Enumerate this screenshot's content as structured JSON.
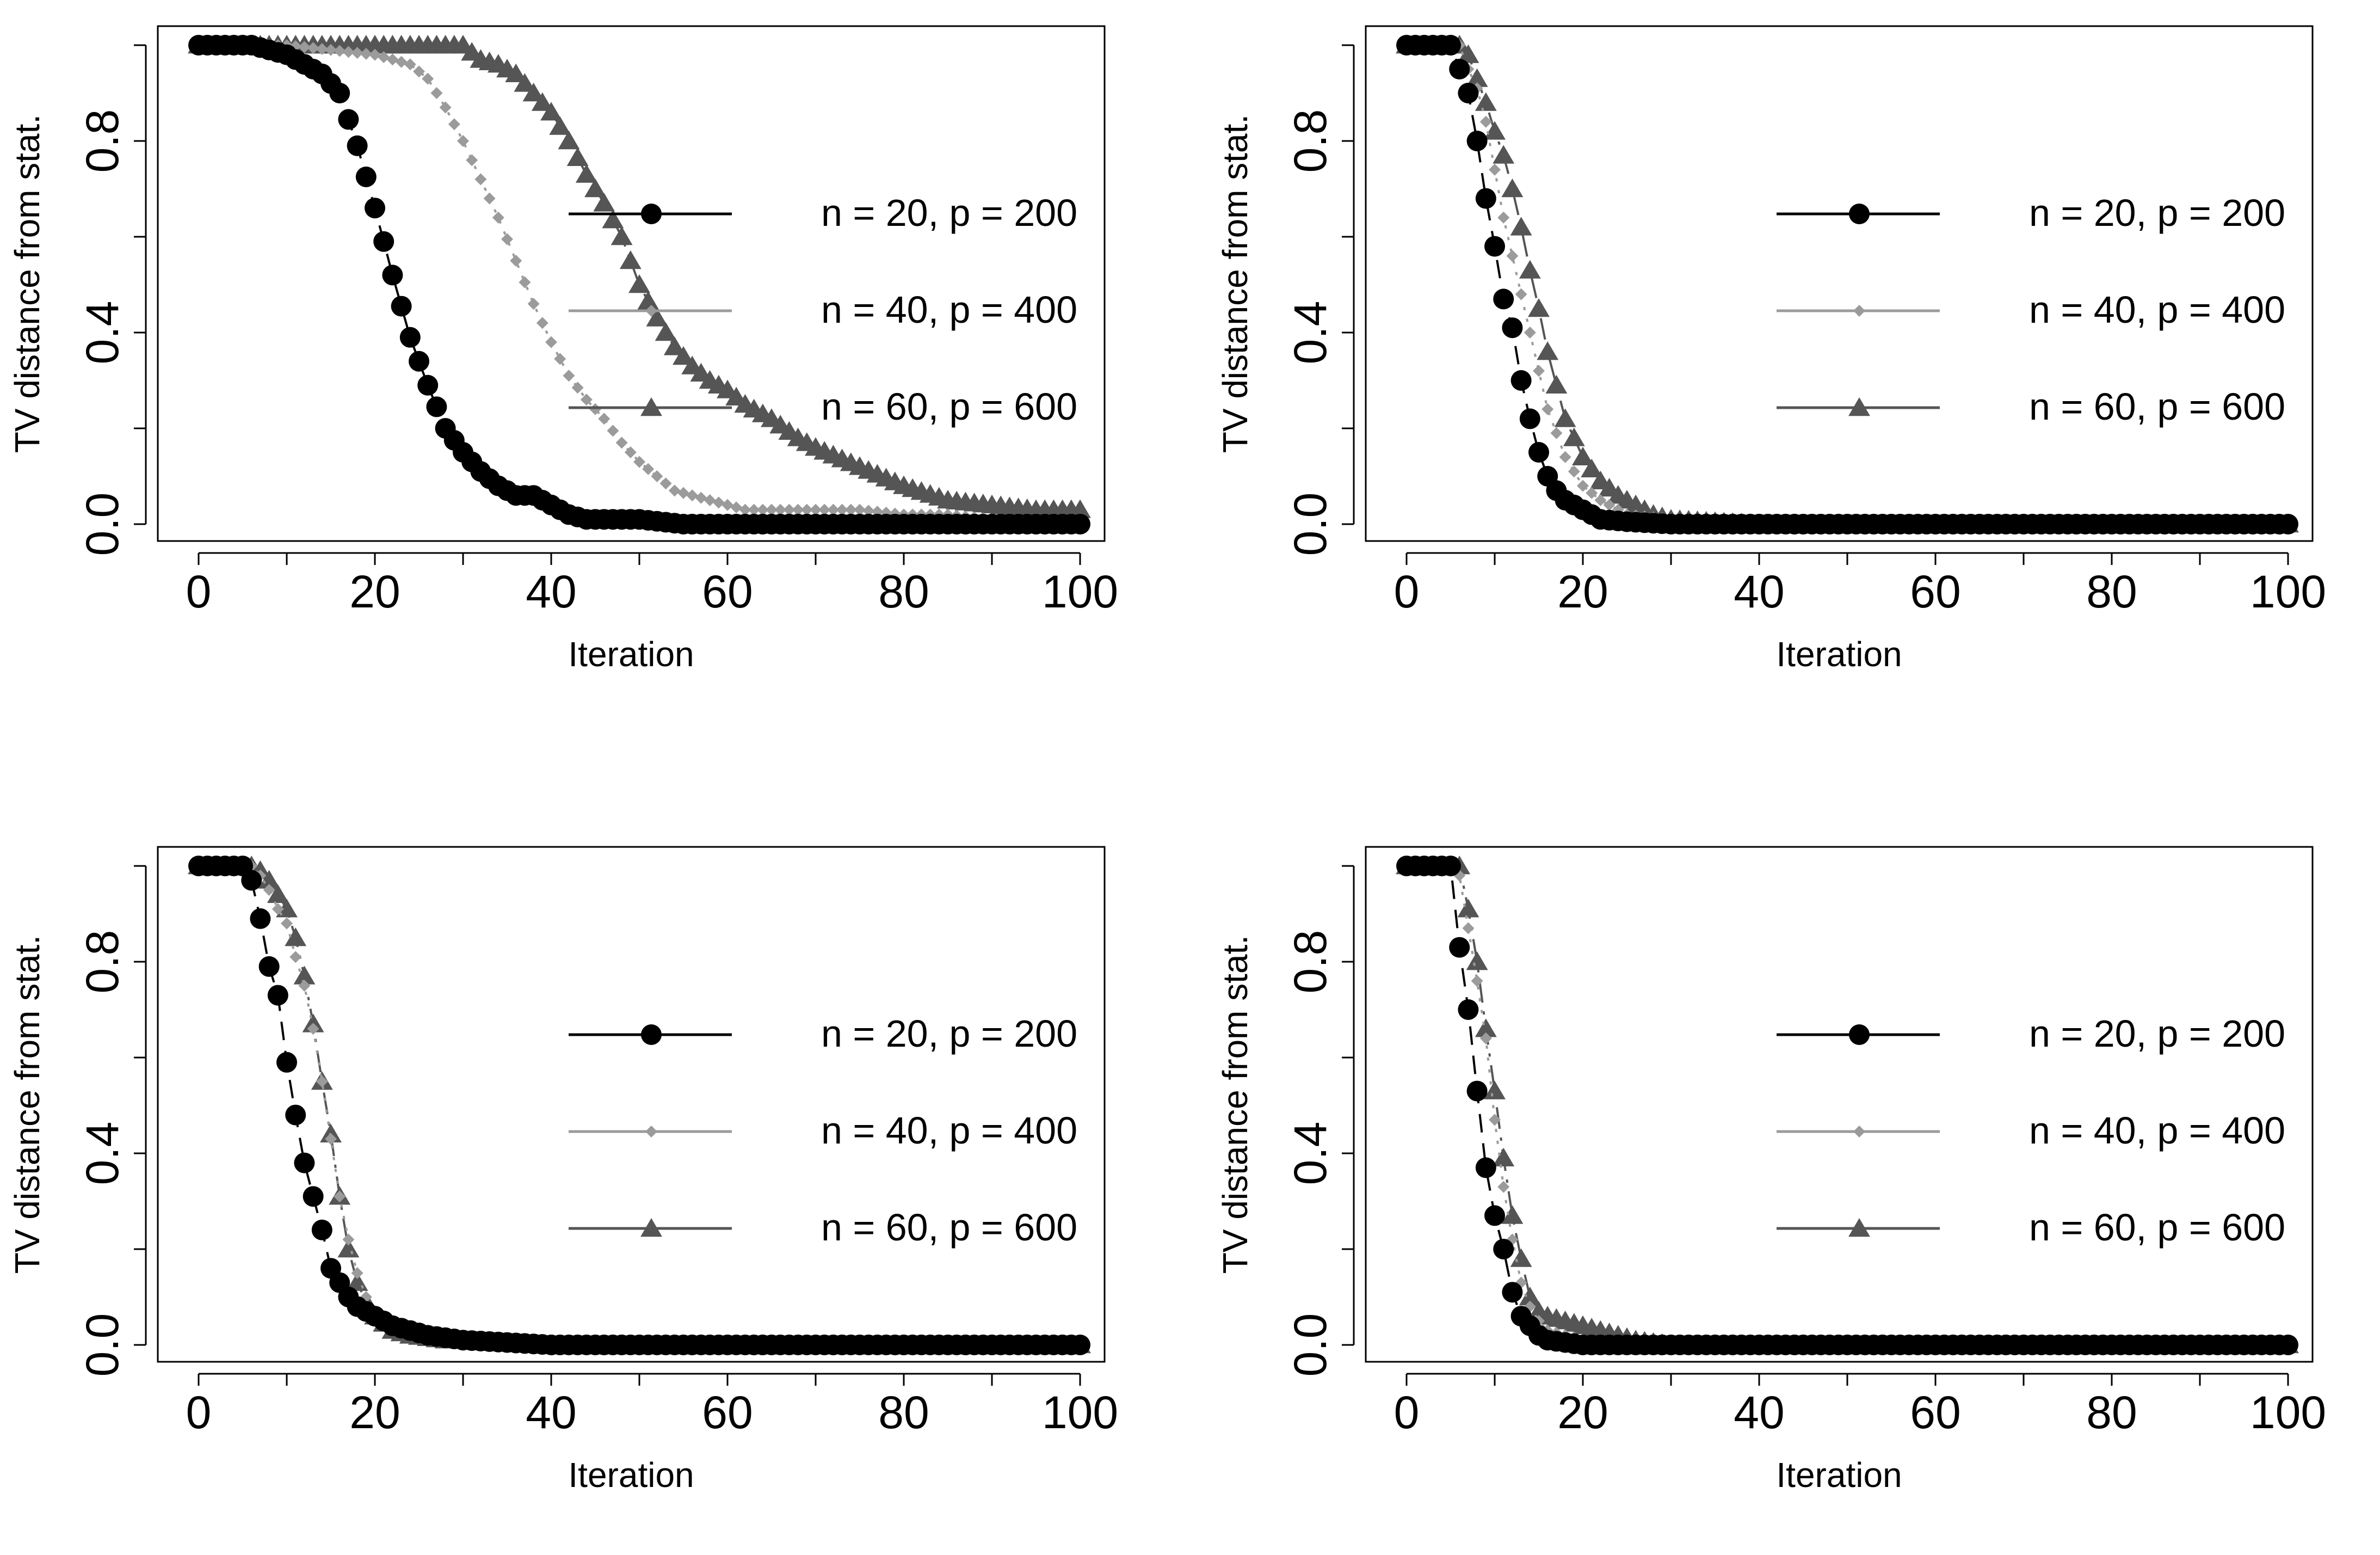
{
  "colors": {
    "n20": "#000000",
    "n40": "#9b9b9b",
    "n60": "#555555"
  },
  "chart_data": [
    {
      "type": "line",
      "xlabel": "Iteration",
      "ylabel": "TV distance from stat.",
      "xlim": [
        0,
        100
      ],
      "ylim": [
        0,
        1
      ],
      "xticks": [
        "0",
        "20",
        "40",
        "60",
        "80",
        "100"
      ],
      "yticks": [
        "0.0",
        "0.4",
        "0.8"
      ],
      "legend_position": "right",
      "series": [
        {
          "name": "n = 20, p = 200",
          "marker": "circle",
          "linestyle": "dashed",
          "x": [
            0,
            2,
            4,
            6,
            8,
            10,
            12,
            14,
            16,
            18,
            20,
            22,
            24,
            26,
            28,
            30,
            32,
            34,
            36,
            38,
            40,
            42,
            44,
            46,
            48,
            50,
            55,
            60,
            70,
            80,
            90,
            100
          ],
          "y": [
            1.0,
            1.0,
            1.0,
            1.0,
            0.99,
            0.98,
            0.96,
            0.94,
            0.9,
            0.79,
            0.66,
            0.52,
            0.39,
            0.29,
            0.2,
            0.15,
            0.11,
            0.08,
            0.06,
            0.06,
            0.04,
            0.02,
            0.01,
            0.01,
            0.01,
            0.01,
            0.0,
            0.0,
            0.0,
            0.0,
            0.0,
            0.0
          ]
        },
        {
          "name": "n = 40, p = 400",
          "marker": "diamond",
          "linestyle": "dotted",
          "x": [
            0,
            5,
            10,
            15,
            20,
            24,
            26,
            28,
            30,
            32,
            34,
            36,
            38,
            40,
            42,
            44,
            46,
            48,
            50,
            52,
            54,
            56,
            58,
            60,
            62,
            65,
            70,
            75,
            80,
            85,
            90,
            95,
            100
          ],
          "y": [
            1.0,
            1.0,
            1.0,
            0.99,
            0.98,
            0.96,
            0.93,
            0.87,
            0.8,
            0.72,
            0.64,
            0.55,
            0.46,
            0.38,
            0.31,
            0.26,
            0.22,
            0.17,
            0.13,
            0.1,
            0.07,
            0.06,
            0.05,
            0.04,
            0.03,
            0.03,
            0.03,
            0.03,
            0.02,
            0.02,
            0.01,
            0.01,
            0.01
          ]
        },
        {
          "name": "n = 60, p = 600",
          "marker": "triangle",
          "linestyle": "dotdash",
          "x": [
            0,
            5,
            10,
            15,
            20,
            25,
            30,
            32,
            34,
            36,
            38,
            40,
            42,
            44,
            46,
            48,
            50,
            52,
            54,
            56,
            58,
            60,
            62,
            65,
            68,
            70,
            75,
            80,
            85,
            90,
            95,
            100
          ],
          "y": [
            1.0,
            1.0,
            1.0,
            1.0,
            1.0,
            1.0,
            1.0,
            0.97,
            0.96,
            0.94,
            0.9,
            0.86,
            0.8,
            0.73,
            0.67,
            0.6,
            0.5,
            0.43,
            0.37,
            0.33,
            0.3,
            0.28,
            0.25,
            0.22,
            0.18,
            0.16,
            0.12,
            0.08,
            0.05,
            0.04,
            0.03,
            0.03
          ]
        }
      ]
    },
    {
      "type": "line",
      "xlabel": "Iteration",
      "ylabel": "TV distance from stat.",
      "xlim": [
        0,
        100
      ],
      "ylim": [
        0,
        1
      ],
      "xticks": [
        "0",
        "20",
        "40",
        "60",
        "80",
        "100"
      ],
      "yticks": [
        "0.0",
        "0.4",
        "0.8"
      ],
      "legend_position": "right",
      "series": [
        {
          "name": "n = 20, p = 200",
          "marker": "circle",
          "linestyle": "dashed",
          "x": [
            0,
            2,
            4,
            5,
            6,
            7,
            8,
            9,
            10,
            11,
            12,
            13,
            14,
            15,
            16,
            17,
            18,
            20,
            22,
            25,
            30,
            40,
            60,
            80,
            100
          ],
          "y": [
            1.0,
            1.0,
            1.0,
            1.0,
            0.95,
            0.9,
            0.8,
            0.68,
            0.58,
            0.47,
            0.41,
            0.3,
            0.22,
            0.15,
            0.1,
            0.07,
            0.05,
            0.03,
            0.01,
            0.005,
            0.0,
            0.0,
            0.0,
            0.0,
            0.0
          ]
        },
        {
          "name": "n = 40, p = 400",
          "marker": "diamond",
          "linestyle": "dotted",
          "x": [
            0,
            2,
            4,
            6,
            7,
            8,
            9,
            10,
            11,
            12,
            13,
            14,
            15,
            16,
            17,
            18,
            20,
            22,
            25,
            30,
            40,
            60,
            80,
            100
          ],
          "y": [
            1.0,
            1.0,
            1.0,
            1.0,
            0.95,
            0.91,
            0.84,
            0.74,
            0.64,
            0.56,
            0.48,
            0.4,
            0.32,
            0.24,
            0.19,
            0.14,
            0.08,
            0.05,
            0.02,
            0.01,
            0.0,
            0.0,
            0.0,
            0.0
          ]
        },
        {
          "name": "n = 60, p = 600",
          "marker": "triangle",
          "linestyle": "dotdash",
          "x": [
            0,
            2,
            4,
            6,
            7,
            8,
            9,
            10,
            11,
            12,
            13,
            14,
            15,
            16,
            17,
            18,
            19,
            20,
            22,
            24,
            26,
            28,
            30,
            40,
            60,
            80,
            100
          ],
          "y": [
            1.0,
            1.0,
            1.0,
            1.0,
            0.98,
            0.93,
            0.88,
            0.82,
            0.77,
            0.7,
            0.62,
            0.53,
            0.45,
            0.36,
            0.29,
            0.22,
            0.18,
            0.14,
            0.09,
            0.06,
            0.04,
            0.02,
            0.01,
            0.0,
            0.0,
            0.0,
            0.0
          ]
        }
      ]
    },
    {
      "type": "line",
      "xlabel": "Iteration",
      "ylabel": "TV distance from stat.",
      "xlim": [
        0,
        100
      ],
      "ylim": [
        0,
        1
      ],
      "xticks": [
        "0",
        "20",
        "40",
        "60",
        "80",
        "100"
      ],
      "yticks": [
        "0.0",
        "0.4",
        "0.8"
      ],
      "legend_position": "right",
      "series": [
        {
          "name": "n = 20, p = 200",
          "marker": "circle",
          "linestyle": "dashed",
          "x": [
            0,
            2,
            4,
            5,
            6,
            7,
            8,
            9,
            10,
            11,
            12,
            13,
            14,
            15,
            16,
            17,
            18,
            19,
            20,
            22,
            24,
            26,
            28,
            30,
            35,
            40,
            60,
            80,
            100
          ],
          "y": [
            1.0,
            1.0,
            1.0,
            1.0,
            0.97,
            0.89,
            0.79,
            0.73,
            0.59,
            0.48,
            0.38,
            0.31,
            0.24,
            0.16,
            0.13,
            0.1,
            0.08,
            0.07,
            0.06,
            0.04,
            0.03,
            0.02,
            0.015,
            0.01,
            0.005,
            0.0,
            0.0,
            0.0,
            0.0
          ]
        },
        {
          "name": "n = 40, p = 400",
          "marker": "diamond",
          "linestyle": "dotted",
          "x": [
            0,
            2,
            4,
            6,
            7,
            8,
            9,
            10,
            11,
            12,
            13,
            14,
            15,
            16,
            17,
            18,
            19,
            20,
            22,
            24,
            26,
            28,
            30,
            35,
            40,
            60,
            80,
            100
          ],
          "y": [
            1.0,
            1.0,
            1.0,
            1.0,
            0.98,
            0.95,
            0.91,
            0.88,
            0.81,
            0.75,
            0.66,
            0.55,
            0.43,
            0.31,
            0.22,
            0.15,
            0.1,
            0.07,
            0.04,
            0.025,
            0.02,
            0.015,
            0.01,
            0.005,
            0.0,
            0.0,
            0.0,
            0.0
          ]
        },
        {
          "name": "n = 60, p = 600",
          "marker": "triangle",
          "linestyle": "dotdash",
          "x": [
            0,
            2,
            4,
            6,
            7,
            8,
            9,
            10,
            11,
            12,
            13,
            14,
            15,
            16,
            17,
            18,
            19,
            20,
            22,
            24,
            26,
            28,
            30,
            35,
            40,
            60,
            80,
            100
          ],
          "y": [
            1.0,
            1.0,
            1.0,
            1.0,
            0.99,
            0.97,
            0.94,
            0.91,
            0.85,
            0.77,
            0.67,
            0.55,
            0.44,
            0.31,
            0.2,
            0.13,
            0.09,
            0.06,
            0.03,
            0.02,
            0.015,
            0.01,
            0.01,
            0.005,
            0.0,
            0.0,
            0.0,
            0.0
          ]
        }
      ]
    },
    {
      "type": "line",
      "xlabel": "Iteration",
      "ylabel": "TV distance from stat.",
      "xlim": [
        0,
        100
      ],
      "ylim": [
        0,
        1
      ],
      "xticks": [
        "0",
        "20",
        "40",
        "60",
        "80",
        "100"
      ],
      "yticks": [
        "0.0",
        "0.4",
        "0.8"
      ],
      "legend_position": "right",
      "series": [
        {
          "name": "n = 20, p = 200",
          "marker": "circle",
          "linestyle": "dashed",
          "x": [
            0,
            2,
            4,
            5,
            6,
            7,
            8,
            9,
            10,
            11,
            12,
            13,
            14,
            15,
            16,
            18,
            20,
            22,
            25,
            30,
            40,
            60,
            80,
            100
          ],
          "y": [
            1.0,
            1.0,
            1.0,
            1.0,
            0.83,
            0.7,
            0.53,
            0.37,
            0.27,
            0.2,
            0.11,
            0.06,
            0.04,
            0.02,
            0.01,
            0.005,
            0.0,
            0.0,
            0.0,
            0.0,
            0.0,
            0.0,
            0.0,
            0.0
          ]
        },
        {
          "name": "n = 40, p = 400",
          "marker": "diamond",
          "linestyle": "dotted",
          "x": [
            0,
            2,
            4,
            6,
            7,
            8,
            9,
            10,
            11,
            12,
            13,
            14,
            15,
            16,
            18,
            20,
            22,
            25,
            30,
            40,
            60,
            80,
            100
          ],
          "y": [
            1.0,
            1.0,
            1.0,
            0.98,
            0.87,
            0.76,
            0.64,
            0.47,
            0.33,
            0.22,
            0.13,
            0.08,
            0.05,
            0.03,
            0.02,
            0.01,
            0.005,
            0.0,
            0.0,
            0.0,
            0.0,
            0.0,
            0.0
          ]
        },
        {
          "name": "n = 60, p = 600",
          "marker": "triangle",
          "linestyle": "dotdash",
          "x": [
            0,
            2,
            4,
            6,
            7,
            8,
            9,
            10,
            11,
            12,
            13,
            14,
            15,
            16,
            18,
            20,
            22,
            24,
            26,
            28,
            30,
            40,
            60,
            80,
            100
          ],
          "y": [
            1.0,
            1.0,
            1.0,
            1.0,
            0.91,
            0.8,
            0.66,
            0.53,
            0.39,
            0.27,
            0.18,
            0.1,
            0.07,
            0.06,
            0.05,
            0.04,
            0.03,
            0.02,
            0.01,
            0.005,
            0.0,
            0.0,
            0.0,
            0.0,
            0.0
          ]
        }
      ]
    }
  ]
}
